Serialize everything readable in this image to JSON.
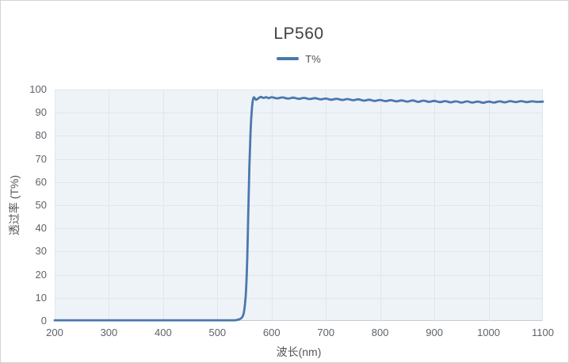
{
  "header": {
    "title": "LP560"
  },
  "legend": {
    "label": "T%"
  },
  "axes": {
    "x_title": "波长(nm)",
    "y_title": "透过率 (T%)",
    "x_ticks": [
      200,
      300,
      400,
      500,
      600,
      700,
      800,
      900,
      1000,
      1100
    ],
    "y_ticks": [
      0,
      10,
      20,
      30,
      40,
      50,
      60,
      70,
      80,
      90,
      100
    ]
  },
  "colors": {
    "line": "#4a78ad",
    "plot_background": "#eef3f8",
    "gridline": "#e1e6ec",
    "axis_line": "#c6ccd3",
    "tick_label": "#5f6369",
    "title_text": "#3e4146"
  },
  "chart_data": {
    "type": "line",
    "title": "LP560",
    "xlabel": "波长(nm)",
    "ylabel": "透过率 (T%)",
    "xlim": [
      200,
      1100
    ],
    "ylim": [
      0,
      100
    ],
    "x_tick_step": 100,
    "y_tick_step": 10,
    "grid": true,
    "legend_position": "top",
    "series": [
      {
        "name": "T%",
        "color": "#4a78ad",
        "points": [
          [
            200,
            0.3
          ],
          [
            210,
            0.3
          ],
          [
            220,
            0.3
          ],
          [
            230,
            0.3
          ],
          [
            240,
            0.3
          ],
          [
            250,
            0.3
          ],
          [
            260,
            0.3
          ],
          [
            270,
            0.3
          ],
          [
            280,
            0.3
          ],
          [
            290,
            0.3
          ],
          [
            300,
            0.3
          ],
          [
            310,
            0.3
          ],
          [
            320,
            0.3
          ],
          [
            330,
            0.3
          ],
          [
            340,
            0.3
          ],
          [
            350,
            0.3
          ],
          [
            360,
            0.3
          ],
          [
            370,
            0.3
          ],
          [
            380,
            0.3
          ],
          [
            390,
            0.3
          ],
          [
            400,
            0.3
          ],
          [
            410,
            0.3
          ],
          [
            420,
            0.3
          ],
          [
            430,
            0.3
          ],
          [
            440,
            0.3
          ],
          [
            450,
            0.3
          ],
          [
            460,
            0.3
          ],
          [
            470,
            0.3
          ],
          [
            480,
            0.3
          ],
          [
            490,
            0.3
          ],
          [
            500,
            0.3
          ],
          [
            510,
            0.3
          ],
          [
            520,
            0.3
          ],
          [
            530,
            0.3
          ],
          [
            535,
            0.4
          ],
          [
            540,
            0.7
          ],
          [
            544,
            1.2
          ],
          [
            547,
            2.2
          ],
          [
            549,
            4
          ],
          [
            551,
            7.5
          ],
          [
            553,
            14
          ],
          [
            555,
            27
          ],
          [
            557,
            47
          ],
          [
            559,
            67
          ],
          [
            561,
            81
          ],
          [
            563,
            90
          ],
          [
            565,
            94.8
          ],
          [
            567,
            96.6
          ],
          [
            569,
            96.2
          ],
          [
            571,
            95.6
          ],
          [
            573,
            95.8
          ],
          [
            576,
            96.3
          ],
          [
            580,
            96.8
          ],
          [
            585,
            96.4
          ],
          [
            590,
            96.7
          ],
          [
            595,
            96.3
          ],
          [
            600,
            96.7
          ],
          [
            610,
            96.2
          ],
          [
            620,
            96.6
          ],
          [
            630,
            96.1
          ],
          [
            640,
            96.5
          ],
          [
            650,
            96.0
          ],
          [
            660,
            96.4
          ],
          [
            670,
            95.9
          ],
          [
            680,
            96.3
          ],
          [
            690,
            95.8
          ],
          [
            700,
            96.1
          ],
          [
            710,
            95.6
          ],
          [
            720,
            96.0
          ],
          [
            730,
            95.5
          ],
          [
            740,
            95.9
          ],
          [
            750,
            95.4
          ],
          [
            760,
            95.8
          ],
          [
            770,
            95.2
          ],
          [
            780,
            95.6
          ],
          [
            790,
            95.1
          ],
          [
            800,
            95.5
          ],
          [
            810,
            95.0
          ],
          [
            820,
            95.4
          ],
          [
            830,
            94.9
          ],
          [
            840,
            95.3
          ],
          [
            850,
            94.8
          ],
          [
            860,
            95.3
          ],
          [
            870,
            94.7
          ],
          [
            880,
            95.2
          ],
          [
            890,
            94.7
          ],
          [
            900,
            95.1
          ],
          [
            910,
            94.6
          ],
          [
            920,
            95.0
          ],
          [
            930,
            94.5
          ],
          [
            940,
            94.9
          ],
          [
            950,
            94.4
          ],
          [
            960,
            94.9
          ],
          [
            970,
            94.4
          ],
          [
            980,
            94.8
          ],
          [
            990,
            94.3
          ],
          [
            1000,
            94.8
          ],
          [
            1010,
            94.4
          ],
          [
            1020,
            94.9
          ],
          [
            1030,
            94.5
          ],
          [
            1040,
            95.0
          ],
          [
            1050,
            94.6
          ],
          [
            1060,
            95.0
          ],
          [
            1070,
            94.6
          ],
          [
            1080,
            94.9
          ],
          [
            1090,
            94.7
          ],
          [
            1100,
            94.8
          ]
        ]
      }
    ]
  }
}
